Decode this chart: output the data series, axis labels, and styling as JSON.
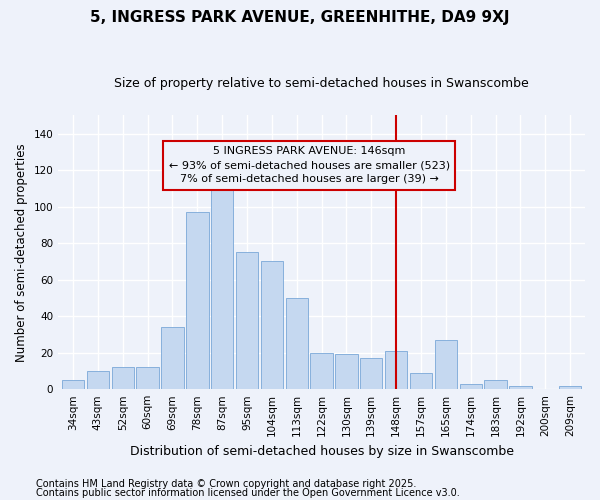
{
  "title": "5, INGRESS PARK AVENUE, GREENHITHE, DA9 9XJ",
  "subtitle": "Size of property relative to semi-detached houses in Swanscombe",
  "xlabel": "Distribution of semi-detached houses by size in Swanscombe",
  "ylabel": "Number of semi-detached properties",
  "categories": [
    "34sqm",
    "43sqm",
    "52sqm",
    "60sqm",
    "69sqm",
    "78sqm",
    "87sqm",
    "95sqm",
    "104sqm",
    "113sqm",
    "122sqm",
    "130sqm",
    "139sqm",
    "148sqm",
    "157sqm",
    "165sqm",
    "174sqm",
    "183sqm",
    "192sqm",
    "200sqm",
    "209sqm"
  ],
  "values": [
    5,
    10,
    12,
    12,
    34,
    97,
    110,
    75,
    70,
    50,
    20,
    19,
    17,
    21,
    9,
    27,
    3,
    5,
    2,
    0,
    2
  ],
  "highlight_index": 13,
  "vline_index": 13,
  "bar_color_normal": "#c5d8f0",
  "bar_color_highlight": "#c5d8f0",
  "annotation_line1": "5 INGRESS PARK AVENUE: 146sqm",
  "annotation_line2": "← 93% of semi-detached houses are smaller (523)",
  "annotation_line3": "7% of semi-detached houses are larger (39) →",
  "annotation_box_color": "#cc0000",
  "vline_color": "#cc0000",
  "ylim": [
    0,
    150
  ],
  "yticks": [
    0,
    20,
    40,
    60,
    80,
    100,
    120,
    140
  ],
  "footnote1": "Contains HM Land Registry data © Crown copyright and database right 2025.",
  "footnote2": "Contains public sector information licensed under the Open Government Licence v3.0.",
  "title_fontsize": 11,
  "subtitle_fontsize": 9,
  "xlabel_fontsize": 9,
  "ylabel_fontsize": 8.5,
  "tick_fontsize": 7.5,
  "footnote_fontsize": 7,
  "annotation_fontsize": 8,
  "background_color": "#eef2fa"
}
